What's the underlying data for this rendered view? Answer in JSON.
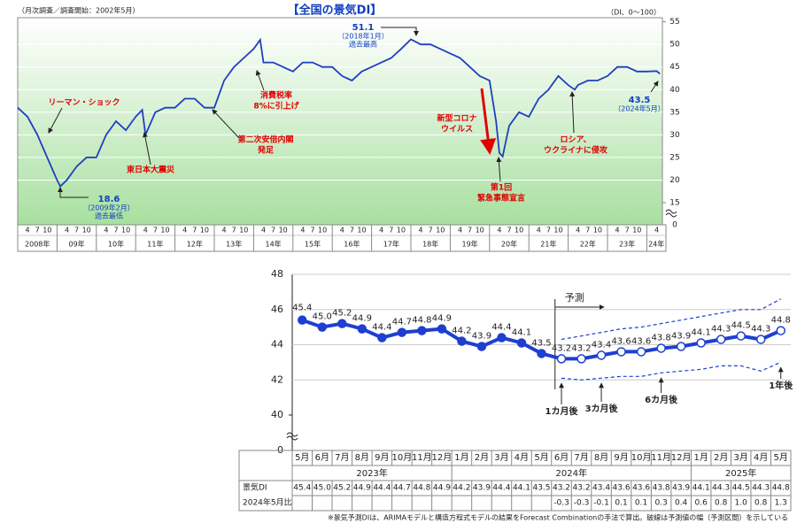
{
  "chart_data": [
    {
      "type": "line",
      "title": "【全国の景気DI】",
      "subtitle": "（月次調査／調査開始：2002年5月）",
      "unit_label": "（DI、0～100）",
      "x": [
        "2008-01",
        "2008-04",
        "2008-07",
        "2008-10",
        "2009-01",
        "2009-02",
        "2009-04",
        "2009-07",
        "2009-10",
        "2010-01",
        "2010-04",
        "2010-07",
        "2010-10",
        "2011-01",
        "2011-03",
        "2011-04",
        "2011-07",
        "2011-10",
        "2012-01",
        "2012-04",
        "2012-07",
        "2012-10",
        "2013-01",
        "2013-04",
        "2013-07",
        "2013-10",
        "2014-01",
        "2014-03",
        "2014-04",
        "2014-07",
        "2014-10",
        "2015-01",
        "2015-04",
        "2015-07",
        "2015-10",
        "2016-01",
        "2016-04",
        "2016-07",
        "2016-10",
        "2017-01",
        "2017-04",
        "2017-07",
        "2017-10",
        "2018-01",
        "2018-04",
        "2018-07",
        "2018-10",
        "2019-01",
        "2019-04",
        "2019-07",
        "2019-10",
        "2020-01",
        "2020-03",
        "2020-04",
        "2020-05",
        "2020-07",
        "2020-10",
        "2021-01",
        "2021-04",
        "2021-07",
        "2021-10",
        "2022-01",
        "2022-03",
        "2022-04",
        "2022-07",
        "2022-10",
        "2023-01",
        "2023-04",
        "2023-07",
        "2023-10",
        "2024-01",
        "2024-04",
        "2024-05"
      ],
      "series": [
        {
          "color": "#1f3fbf",
          "values": [
            36,
            34,
            30,
            25,
            20,
            18.6,
            20,
            23,
            25,
            25,
            30,
            33,
            31,
            34,
            35.5,
            30,
            35,
            36,
            36,
            38,
            38,
            36,
            36,
            42,
            45,
            47,
            49,
            51,
            46,
            46,
            45,
            44,
            46,
            46,
            45,
            45,
            43,
            42,
            44,
            45,
            46,
            47,
            49,
            51.1,
            50,
            50,
            49,
            48,
            47,
            45,
            43,
            42,
            33,
            26,
            25.2,
            32,
            35,
            34,
            38,
            40,
            43,
            41,
            40,
            41,
            42,
            42,
            43,
            45,
            45,
            44,
            44,
            44.1,
            43.5
          ]
        }
      ],
      "ylim": [
        0,
        55
      ],
      "yticks": [
        0,
        15,
        20,
        25,
        30,
        35,
        40,
        45,
        50,
        55
      ],
      "axis_break": [
        0,
        15
      ],
      "grid": true,
      "year_labels": [
        "2008年",
        "09年",
        "10年",
        "11年",
        "12年",
        "13年",
        "14年",
        "15年",
        "16年",
        "17年",
        "18年",
        "19年",
        "20年",
        "21年",
        "22年",
        "23年",
        "24年"
      ],
      "month_labels": [
        "4",
        "7",
        "10"
      ],
      "annotations": [
        {
          "lines": [
            "リーマン・ショック"
          ],
          "color": "#e00000"
        },
        {
          "lines": [
            "東日本大震災"
          ],
          "color": "#e00000"
        },
        {
          "lines": [
            "第二次安倍内閣",
            "発足"
          ],
          "color": "#e00000"
        },
        {
          "lines": [
            "消費税率",
            "8%に引上げ"
          ],
          "color": "#e00000"
        },
        {
          "lines": [
            "新型コロナ",
            "ウイルス"
          ],
          "color": "#e00000"
        },
        {
          "lines": [
            "第1回",
            "緊急事態宣言"
          ],
          "color": "#e00000"
        },
        {
          "lines": [
            "ロシア、",
            "ウクライナに侵攻"
          ],
          "color": "#e00000"
        }
      ],
      "callouts": [
        {
          "value": 51.1,
          "lines": [
            "（2018年1月）",
            "過去最高"
          ]
        },
        {
          "value": 18.6,
          "lines": [
            "（2009年2月）",
            "過去最低"
          ]
        },
        {
          "value": 43.5,
          "lines": [
            "（2024年5月）"
          ]
        }
      ]
    },
    {
      "type": "line",
      "categories": [
        "5月",
        "6月",
        "7月",
        "8月",
        "9月",
        "10月",
        "11月",
        "12月",
        "1月",
        "2月",
        "3月",
        "4月",
        "5月",
        "6月",
        "7月",
        "8月",
        "9月",
        "10月",
        "11月",
        "12月",
        "1月",
        "2月",
        "3月",
        "4月",
        "5月"
      ],
      "year_labels": [
        "2023年",
        "2024年",
        "2025年"
      ],
      "series": [
        {
          "color": "#1f3fd0",
          "values": [
            45.4,
            45.0,
            45.2,
            44.9,
            44.4,
            44.7,
            44.8,
            44.9,
            44.2,
            43.9,
            44.4,
            44.1,
            43.5,
            43.2,
            43.2,
            43.4,
            43.6,
            43.6,
            43.8,
            43.9,
            44.1,
            44.3,
            44.5,
            44.3,
            44.8
          ],
          "value_labels": [
            "45.4",
            "45.0",
            "45.2",
            "44.9",
            "44.4",
            "44.7",
            "44.8",
            "44.9",
            "44.2",
            "43.9",
            "44.4",
            "44.1",
            "43.5",
            "43.2",
            "43.2",
            "43.4",
            "43.6",
            "43.6",
            "43.8",
            "43.9",
            "44.1",
            "44.3",
            "44.5",
            "44.3",
            "44.8"
          ]
        }
      ],
      "band_upper": [
        null,
        null,
        null,
        null,
        null,
        null,
        null,
        null,
        null,
        null,
        null,
        null,
        null,
        44.3,
        44.5,
        44.7,
        44.9,
        45.0,
        45.2,
        45.4,
        45.6,
        45.8,
        46.0,
        46.0,
        46.6
      ],
      "band_lower": [
        null,
        null,
        null,
        null,
        null,
        null,
        null,
        null,
        null,
        null,
        null,
        null,
        null,
        42.1,
        42.0,
        42.1,
        42.2,
        42.2,
        42.4,
        42.5,
        42.6,
        42.8,
        42.8,
        42.5,
        43.0
      ],
      "band_color": "#1f3fd0",
      "forecast_label": "予測",
      "row_labels": [
        "景気DI",
        "2024年5月比"
      ],
      "change_row": [
        null,
        null,
        null,
        null,
        null,
        null,
        null,
        null,
        null,
        null,
        null,
        null,
        null,
        "-0.3",
        "-0.3",
        "-0.1",
        "0.1",
        "0.1",
        "0.3",
        "0.4",
        "0.6",
        "0.8",
        "1.0",
        "0.8",
        "1.3"
      ],
      "annotations": [
        "1カ月後",
        "3カ月後",
        "6カ月後",
        "1年後"
      ],
      "ylim": [
        0,
        48
      ],
      "yticks": [
        0,
        40,
        42,
        44,
        46,
        48
      ],
      "axis_break": [
        0,
        40
      ],
      "grid": true,
      "footnote": "※景気予測DIは、ARIMAモデルと構造方程式モデルの結果をForecast Combinationの手法で算出。破線は予測値の幅（予測区間）を示している"
    }
  ]
}
